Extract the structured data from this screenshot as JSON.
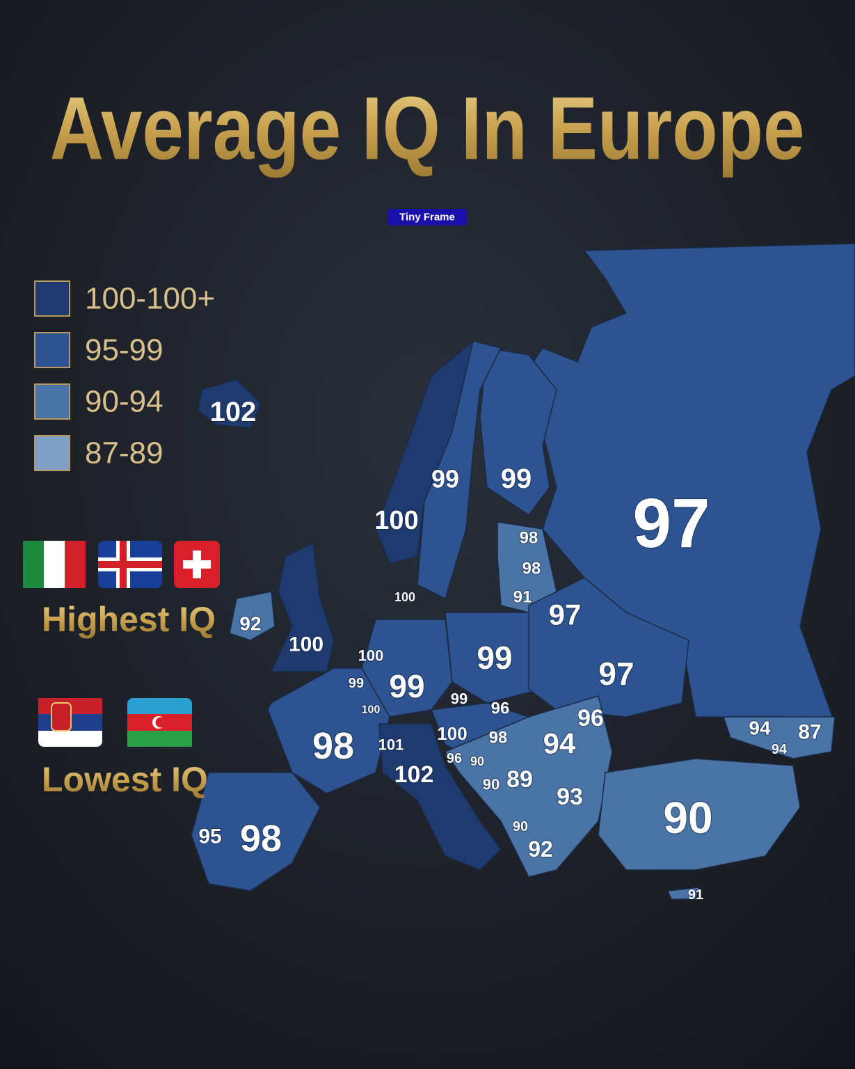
{
  "header": {
    "title": "Average IQ In Europe",
    "watermark": "Tiny Frame"
  },
  "legend": [
    {
      "label": "100-100+",
      "color": "#1f3a6e"
    },
    {
      "label": "95-99",
      "color": "#2d5491"
    },
    {
      "label": "90-94",
      "color": "#4a73a6"
    },
    {
      "label": "87-89",
      "color": "#7fa0c4"
    }
  ],
  "highest": {
    "title": "Highest IQ"
  },
  "lowest": {
    "title": "Lowest IQ"
  },
  "map": {
    "labels": [
      102,
      99,
      99,
      100,
      97,
      98,
      98,
      91,
      100,
      97,
      92,
      100,
      100,
      99,
      99,
      99,
      97,
      99,
      96,
      100,
      96,
      100,
      98,
      94,
      94,
      87,
      94,
      101,
      98,
      102,
      96,
      90,
      90,
      89,
      93,
      90,
      90,
      92,
      95,
      98,
      91
    ]
  }
}
